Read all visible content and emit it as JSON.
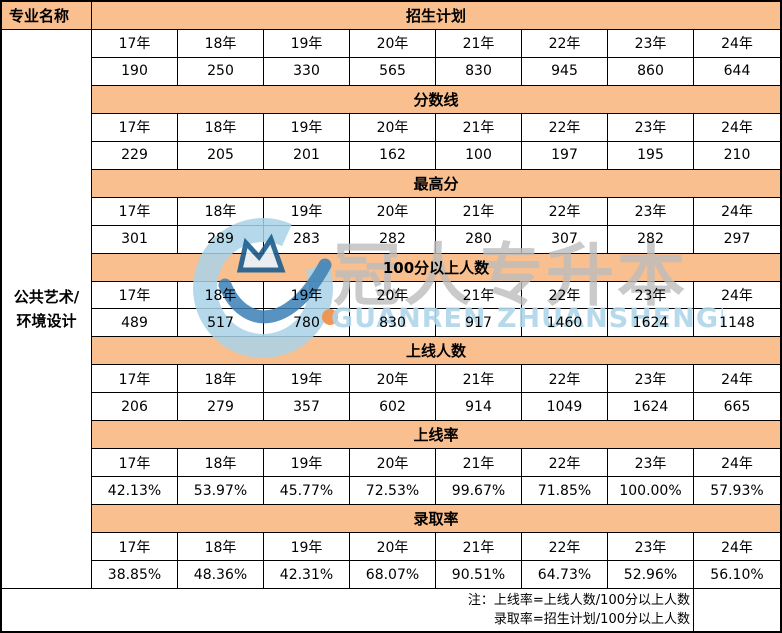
{
  "header": {
    "left": "专业名称"
  },
  "row_label": {
    "line1": "公共艺术/",
    "line2": "环境设计"
  },
  "years": [
    "17年",
    "18年",
    "19年",
    "20年",
    "21年",
    "22年",
    "23年",
    "24年"
  ],
  "sections": [
    {
      "title": "招生计划",
      "values": [
        "190",
        "250",
        "330",
        "565",
        "830",
        "945",
        "860",
        "644"
      ]
    },
    {
      "title": "分数线",
      "values": [
        "229",
        "205",
        "201",
        "162",
        "100",
        "197",
        "195",
        "210"
      ]
    },
    {
      "title": "最高分",
      "values": [
        "301",
        "289",
        "283",
        "282",
        "280",
        "307",
        "282",
        "297"
      ]
    },
    {
      "title": "100分以上人数",
      "values": [
        "489",
        "517",
        "780",
        "830",
        "917",
        "1460",
        "1624",
        "1148"
      ]
    },
    {
      "title": "上线人数",
      "values": [
        "206",
        "279",
        "357",
        "602",
        "914",
        "1049",
        "1624",
        "665"
      ]
    },
    {
      "title": "上线率",
      "values": [
        "42.13%",
        "53.97%",
        "45.77%",
        "72.53%",
        "99.67%",
        "71.85%",
        "100.00%",
        "57.93%"
      ]
    },
    {
      "title": "录取率",
      "values": [
        "38.85%",
        "48.36%",
        "42.31%",
        "68.07%",
        "90.51%",
        "64.73%",
        "52.96%",
        "56.10%"
      ]
    }
  ],
  "note": {
    "line1": "注：上线率=上线人数/100分以上人数",
    "line2": "录取率=招生计划/100分以上人数"
  },
  "watermark": {
    "cn": "冠人专升本",
    "en": "GUANREN ZHUANSHENGBEN"
  },
  "colors": {
    "band": "#FABF8F",
    "border": "#000000",
    "logo_blue": "#A8D2E8",
    "logo_dark_blue": "#1C5E8F",
    "swoosh_blue": "#3B7FB5",
    "watermark_gray": "#BDBDBD",
    "watermark_blue_text": "#B0D5EA",
    "dot_orange": "#F0914C"
  }
}
